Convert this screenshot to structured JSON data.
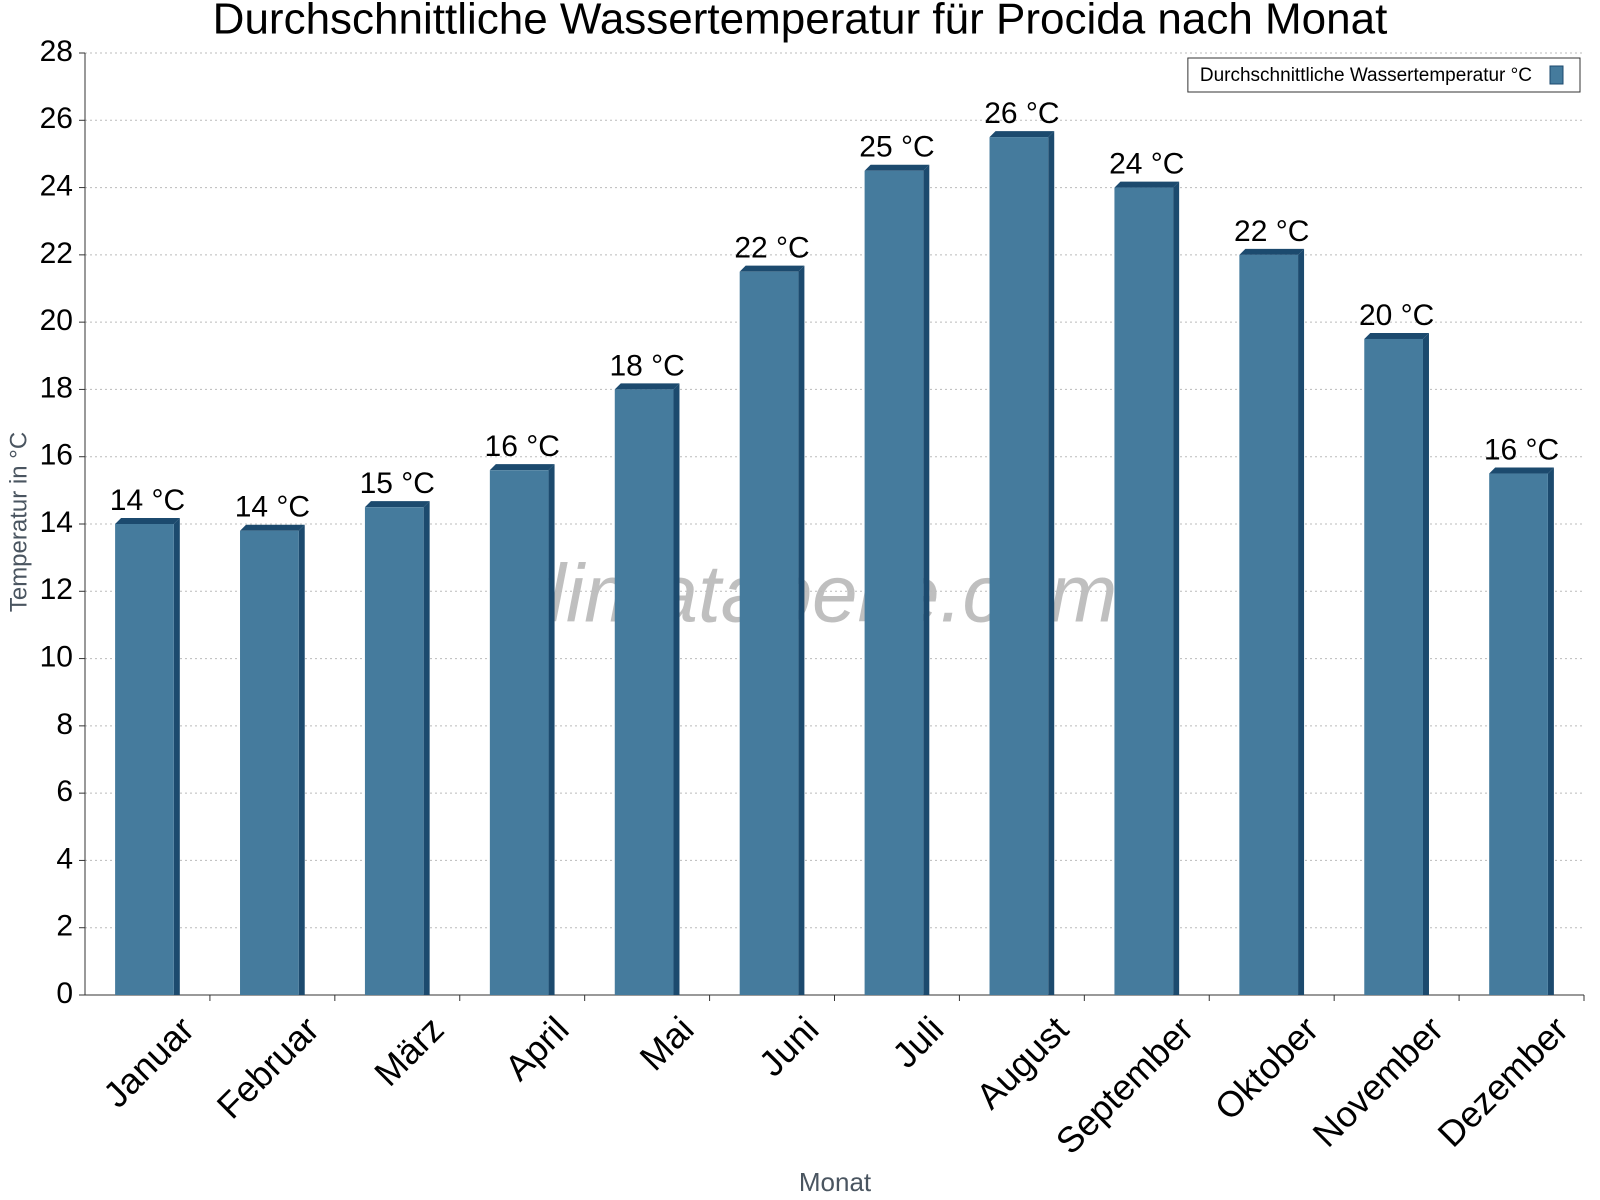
{
  "chart_data": {
    "type": "bar",
    "title": "Durchschnittliche Wassertemperatur für Procida nach Monat",
    "x_label": "Monat",
    "y_label": "Temperatur in °C",
    "watermark": "klimatabelle.com",
    "categories": [
      "Januar",
      "Februar",
      "März",
      "April",
      "Mai",
      "Juni",
      "Juli",
      "August",
      "September",
      "Oktober",
      "November",
      "Dezember"
    ],
    "series": [
      {
        "name": "Durchschnittliche Wassertemperatur °C",
        "color": "#457b9d",
        "values": [
          14.0,
          13.8,
          14.5,
          15.6,
          18.0,
          21.5,
          24.5,
          25.5,
          24.0,
          22.0,
          19.5,
          15.5
        ],
        "value_labels": [
          "14 °C",
          "14 °C",
          "15 °C",
          "16 °C",
          "18 °C",
          "22 °C",
          "25 °C",
          "26 °C",
          "24 °C",
          "22 °C",
          "20 °C",
          "16 °C"
        ]
      }
    ],
    "ylim": [
      0,
      28
    ],
    "yticks": [
      0,
      2,
      4,
      6,
      8,
      10,
      12,
      14,
      16,
      18,
      20,
      22,
      24,
      26,
      28
    ],
    "grid": true,
    "legend": "top-right"
  }
}
